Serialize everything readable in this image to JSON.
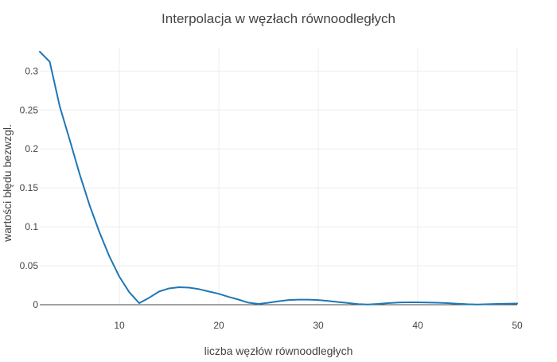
{
  "chart_data": {
    "type": "line",
    "title": "Interpolacja w węzłach równoodległych",
    "xlabel": "liczba węzłów równoodległych",
    "ylabel": "wartości błędu bezwzgl.",
    "xlim": [
      2,
      50
    ],
    "ylim": [
      0,
      0.33
    ],
    "x_ticks": [
      10,
      20,
      30,
      40,
      50
    ],
    "x_tick_labels": [
      "10",
      "20",
      "30",
      "40",
      "50"
    ],
    "y_ticks": [
      0,
      0.05,
      0.1,
      0.15,
      0.2,
      0.25,
      0.3
    ],
    "y_tick_labels": [
      "0",
      "0.05",
      "0.1",
      "0.15",
      "0.2",
      "0.25",
      "0.3"
    ],
    "grid": true,
    "line_color": "#1f77b4",
    "series": [
      {
        "x": [
          2,
          3,
          4,
          5,
          6,
          7,
          8,
          9,
          10,
          11,
          12,
          13,
          14,
          15,
          16,
          17,
          18,
          19,
          20,
          21,
          22,
          23,
          24,
          25,
          26,
          27,
          28,
          29,
          30,
          31,
          32,
          33,
          34,
          35,
          36,
          37,
          38,
          39,
          40,
          41,
          42,
          43,
          44,
          45,
          46,
          47,
          48,
          49,
          50
        ],
        "values": [
          0.325,
          0.312,
          0.255,
          0.212,
          0.168,
          0.128,
          0.093,
          0.062,
          0.036,
          0.016,
          0.002,
          0.009,
          0.017,
          0.021,
          0.0225,
          0.022,
          0.02,
          0.017,
          0.014,
          0.01,
          0.0065,
          0.0025,
          0.001,
          0.0025,
          0.0045,
          0.006,
          0.0065,
          0.0065,
          0.006,
          0.0048,
          0.0035,
          0.0022,
          0.0008,
          0.0003,
          0.001,
          0.002,
          0.0028,
          0.0031,
          0.0031,
          0.0028,
          0.0025,
          0.002,
          0.0013,
          0.0006,
          0.0002,
          0.0006,
          0.001,
          0.0013,
          0.0015
        ]
      }
    ]
  }
}
